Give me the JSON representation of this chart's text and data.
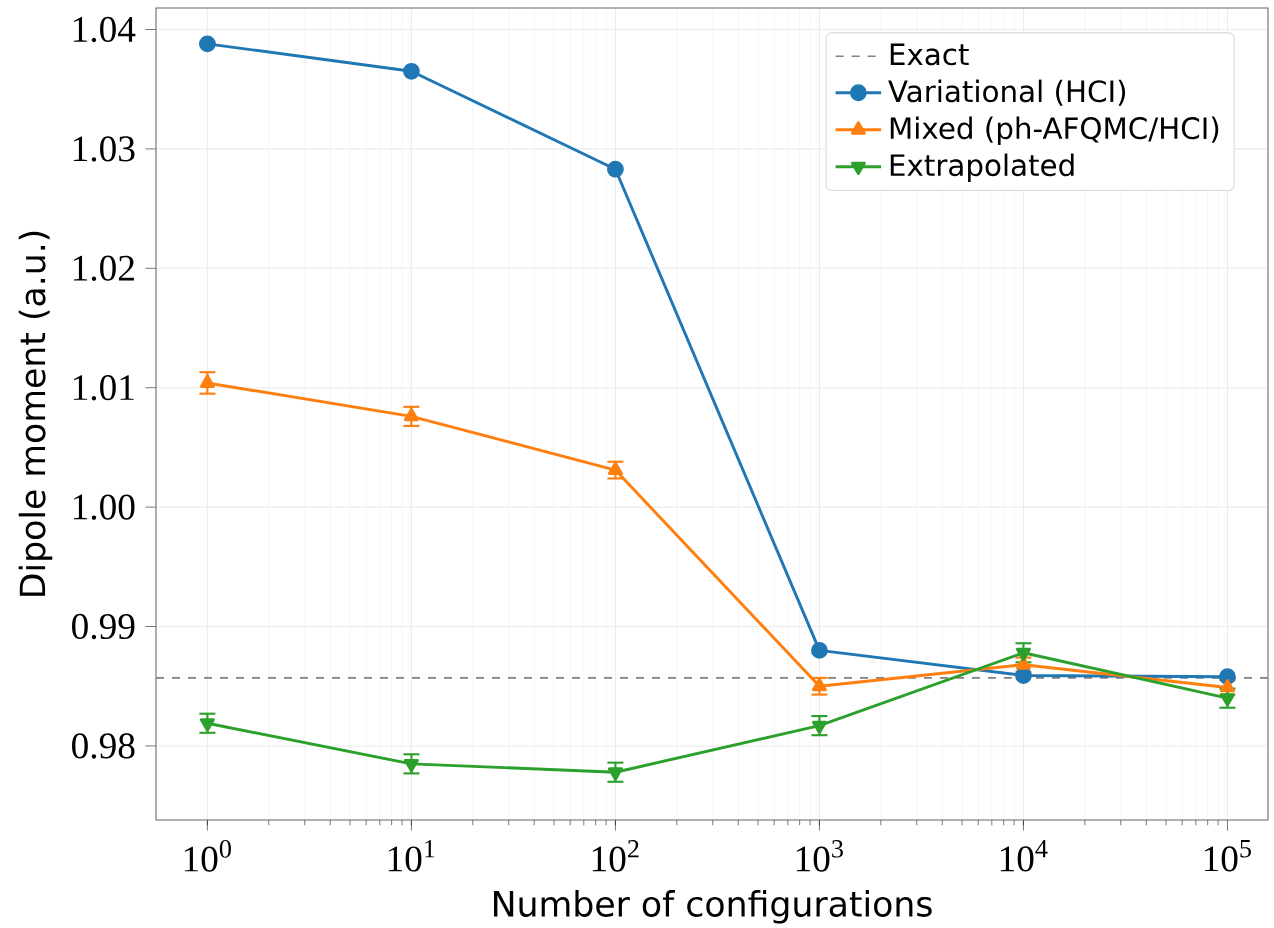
{
  "chart_data": {
    "type": "line",
    "xlabel": "Number of configurations",
    "ylabel": "Dipole moment (a.u.)",
    "x": [
      1,
      10,
      100,
      1000,
      10000,
      100000
    ],
    "series": [
      {
        "name": "Variational (HCI)",
        "color": "#1f77b4",
        "marker": "circle",
        "values": [
          1.0388,
          1.0365,
          1.0283,
          0.988,
          0.9859,
          0.9858
        ]
      },
      {
        "name": "Mixed (ph-AFQMC/HCI)",
        "color": "#ff7f0e",
        "marker": "triangle",
        "values": [
          1.0104,
          1.0076,
          1.0031,
          0.985,
          0.9868,
          0.9849
        ],
        "errors": [
          0.0009,
          0.0008,
          0.0007,
          0.0007,
          0.0006,
          0.0006
        ]
      },
      {
        "name": "Extrapolated",
        "color": "#2ca02c",
        "marker": "triangle down",
        "values": [
          0.9819,
          0.9785,
          0.9778,
          0.9817,
          0.9878,
          0.984
        ],
        "errors": [
          0.0008,
          0.0008,
          0.0008,
          0.0008,
          0.0008,
          0.0008
        ]
      }
    ],
    "ref_lines": [
      {
        "axis": "y",
        "value": 0.9857,
        "label": "Exact",
        "color": "#808080",
        "line_style": "dashed"
      }
    ],
    "log": "x",
    "xlim": [
      0.56,
      158000
    ],
    "ylim": [
      0.9738,
      1.0418
    ],
    "xticks": [
      {
        "value": 1,
        "label": "10$^{0}$"
      },
      {
        "value": 10,
        "label": "10$^{1}$"
      },
      {
        "value": 100,
        "label": "10$^{2}$"
      },
      {
        "value": 1000,
        "label": "10$^{3}$"
      },
      {
        "value": 10000,
        "label": "10$^{4}$"
      },
      {
        "value": 100000,
        "label": "10$^{5}$"
      }
    ],
    "yticks": [
      0.98,
      0.99,
      {
        "value": 1.0,
        "label": "1.00"
      },
      1.01,
      1.02,
      1.03,
      1.04
    ],
    "grid": true,
    "legend": "top right",
    "line_style": "solid"
  }
}
